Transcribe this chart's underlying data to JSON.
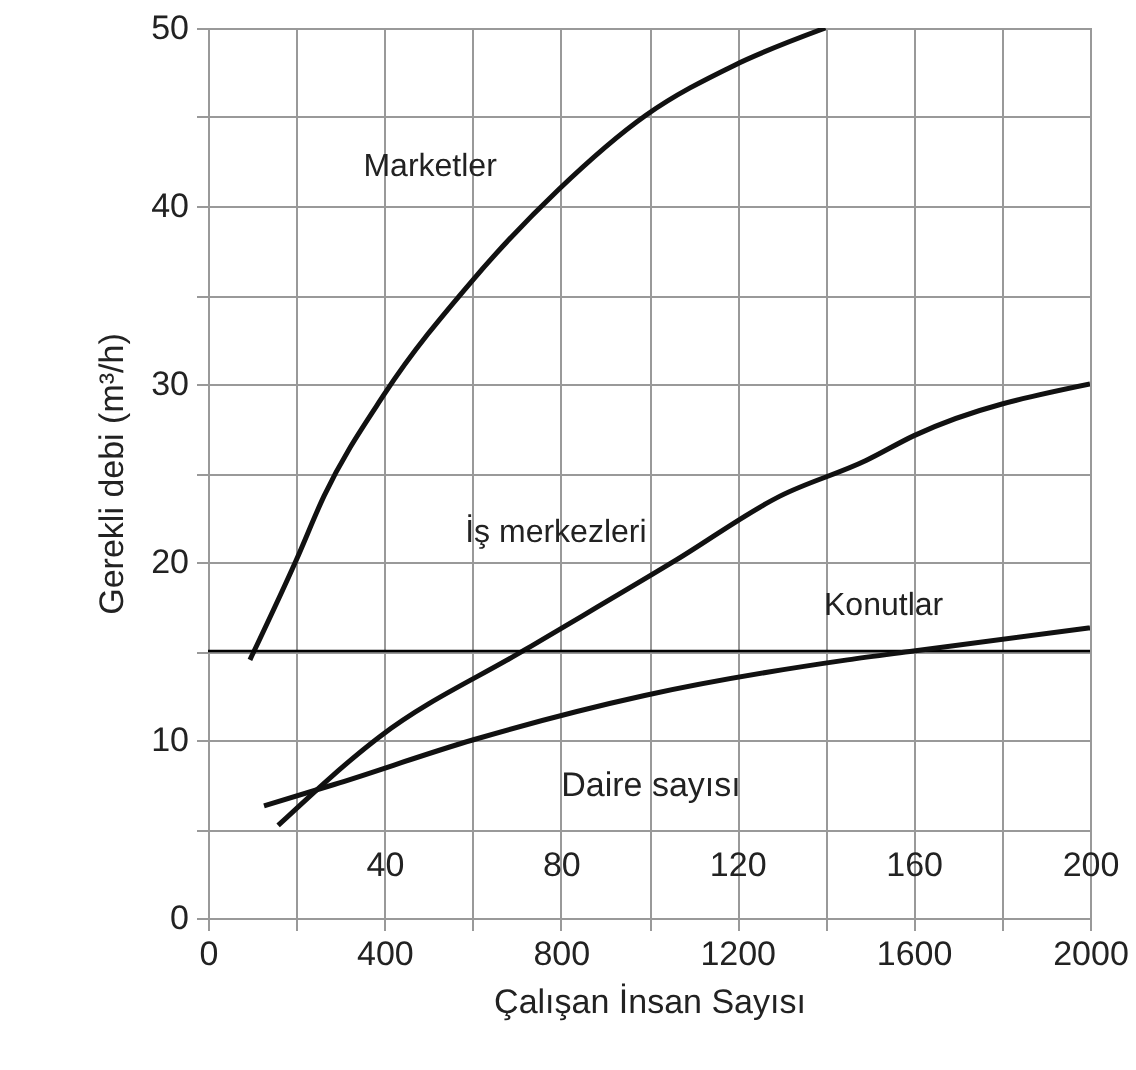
{
  "chart_data": {
    "type": "line",
    "xlabel": "Çalışan İnsan Sayısı",
    "ylabel": "Gerekli debi (m³/h)",
    "x2label": "Daire sayısı",
    "xlim": [
      0,
      2000
    ],
    "xticks": [
      0,
      {
        "value": 200,
        "label": null
      },
      400,
      {
        "value": 600,
        "label": null
      },
      800,
      {
        "value": 1000,
        "label": null
      },
      1200,
      {
        "value": 1400,
        "label": null
      },
      1600,
      {
        "value": 1800,
        "label": null
      },
      2000
    ],
    "x2lim": [
      0,
      200
    ],
    "x2ticks": [
      40,
      {
        "value": 60,
        "label": null
      },
      80,
      {
        "value": 100,
        "label": null
      },
      120,
      {
        "value": 140,
        "label": null
      },
      160,
      {
        "value": 180,
        "label": null
      },
      200
    ],
    "ylim": [
      0,
      50
    ],
    "yticks": [
      0,
      {
        "value": 5,
        "label": null
      },
      10,
      {
        "value": 15,
        "label": null
      },
      20,
      {
        "value": 25,
        "label": null
      },
      30,
      {
        "value": 35,
        "label": null
      },
      40,
      {
        "value": 45,
        "label": null
      },
      50
    ],
    "grid": true,
    "line_style": "solid",
    "marker": "none",
    "ref_lines": [
      {
        "axis": "y",
        "value": 15,
        "color": "#000000"
      }
    ],
    "series": [
      {
        "name": "Marketler",
        "color": "#111111",
        "x": [
          95,
          200,
          263,
          399,
          599,
          794,
          993,
          1193,
          1400
        ],
        "values": [
          14.5,
          20.1,
          23.7,
          29.4,
          35.8,
          40.9,
          45.1,
          47.9,
          50
        ]
      },
      {
        "name": "İş merkezleri",
        "color": "#111111",
        "x": [
          159,
          390,
          721,
          1061,
          1297,
          1492,
          1601,
          2000
        ],
        "values": [
          5.2,
          10.2,
          15.1,
          20.1,
          23.7,
          25.7,
          27.1,
          30
        ]
      },
      {
        "name": "Konutlar",
        "color": "#111111",
        "axis": "x2",
        "x": [
          12.7,
          28.6,
          60,
          99,
          145,
          160,
          200
        ],
        "values": [
          6.3,
          7.5,
          10,
          12.5,
          14.5,
          15,
          16.3
        ]
      }
    ]
  }
}
